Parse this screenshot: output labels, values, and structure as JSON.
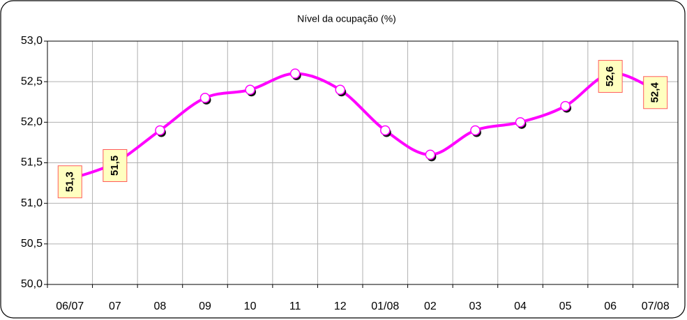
{
  "chart_data": {
    "type": "line",
    "title": "Nível da ocupação (%)",
    "categories": [
      "06/07",
      "07",
      "08",
      "09",
      "10",
      "11",
      "12",
      "01/08",
      "02",
      "03",
      "04",
      "05",
      "06",
      "07/08"
    ],
    "values": [
      51.3,
      51.5,
      51.9,
      52.3,
      52.4,
      52.6,
      52.4,
      51.9,
      51.6,
      51.9,
      52.0,
      52.2,
      52.6,
      52.4
    ],
    "value_labels": [
      "51,3",
      "51,5",
      null,
      null,
      null,
      null,
      null,
      null,
      null,
      null,
      null,
      null,
      "52,6",
      "52,4"
    ],
    "color": "#ff00ff",
    "ylim": [
      50.0,
      53.0
    ],
    "yticks": [
      {
        "value": 50.0,
        "label": "50,0"
      },
      {
        "value": 50.5,
        "label": "50,5"
      },
      {
        "value": 51.0,
        "label": "51,0"
      },
      {
        "value": 51.5,
        "label": "51,5"
      },
      {
        "value": 52.0,
        "label": "52,0"
      },
      {
        "value": 52.5,
        "label": "52,5"
      },
      {
        "value": 53.0,
        "label": "53,0"
      }
    ],
    "grid": true
  }
}
